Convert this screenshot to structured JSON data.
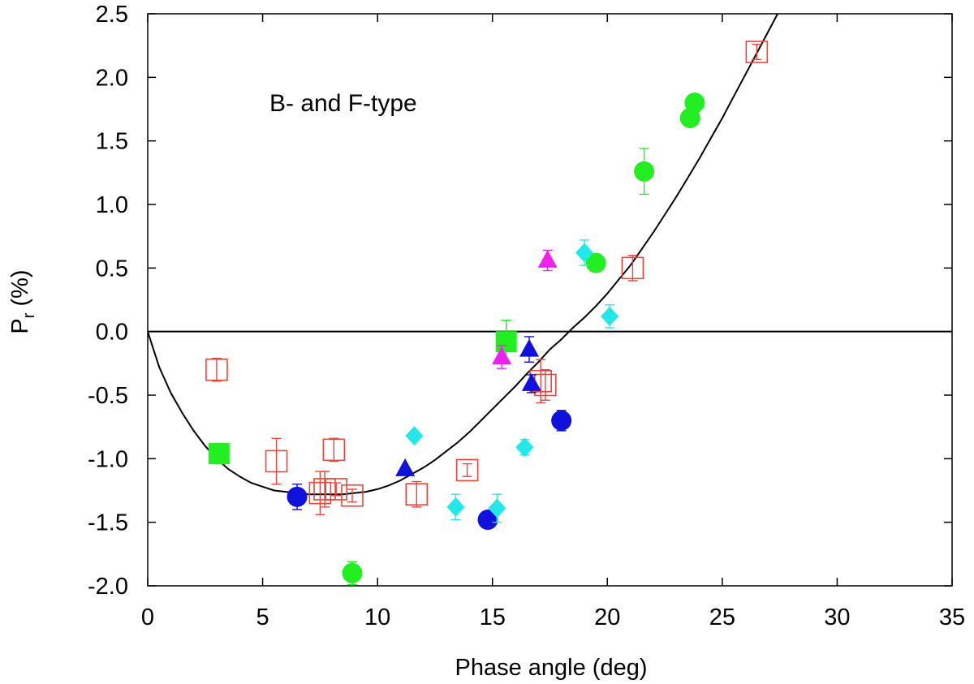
{
  "chart_data": {
    "type": "scatter",
    "title": "",
    "annotation": "B- and F-type",
    "xlabel": "Phase angle (deg)",
    "ylabel_main": "P",
    "ylabel_sub": "r",
    "ylabel_unit": " (%)",
    "xlim": [
      0,
      35
    ],
    "ylim": [
      -2.0,
      2.5
    ],
    "xticks": [
      0,
      5,
      10,
      15,
      20,
      25,
      30,
      35
    ],
    "yticks": [
      -2.0,
      -1.5,
      -1.0,
      -0.5,
      0.0,
      0.5,
      1.0,
      1.5,
      2.0,
      2.5
    ],
    "xtick_labels": [
      "0",
      "5",
      "10",
      "15",
      "20",
      "25",
      "30",
      "35"
    ],
    "ytick_labels": [
      "-2.0",
      "-1.5",
      "-1.0",
      "-0.5",
      "0.0",
      "0.5",
      "1.0",
      "1.5",
      "2.0",
      "2.5"
    ],
    "grid": false,
    "colors": {
      "red": "#e8463a",
      "green": "#22ee22",
      "blue": "#1111dd",
      "cyan": "#22e8e8",
      "magenta": "#ee22ee"
    },
    "series": [
      {
        "marker": "open-square",
        "color": "#e8463a",
        "points": [
          {
            "x": 3.0,
            "y": -0.3,
            "err": 0.09
          },
          {
            "x": 5.6,
            "y": -1.02,
            "err": 0.18
          },
          {
            "x": 7.5,
            "y": -1.27,
            "err": 0.17
          },
          {
            "x": 7.7,
            "y": -1.24,
            "err": 0.14
          },
          {
            "x": 8.1,
            "y": -0.93,
            "err": 0.09
          },
          {
            "x": 8.2,
            "y": -1.24,
            "err": 0.05
          },
          {
            "x": 8.9,
            "y": -1.29,
            "err": 0.05
          },
          {
            "x": 11.7,
            "y": -1.28,
            "err": 0.1
          },
          {
            "x": 13.9,
            "y": -1.09,
            "err": 0.05
          },
          {
            "x": 17.1,
            "y": -0.39,
            "err": 0.17
          },
          {
            "x": 17.3,
            "y": -0.42,
            "err": 0.12
          },
          {
            "x": 21.1,
            "y": 0.5,
            "err": 0.1
          },
          {
            "x": 26.5,
            "y": 2.2,
            "err": 0.06
          }
        ]
      },
      {
        "marker": "filled-square",
        "color": "#22ee22",
        "points": [
          {
            "x": 3.1,
            "y": -0.96,
            "err": 0.08
          },
          {
            "x": 15.6,
            "y": -0.08,
            "err": 0.17
          }
        ]
      },
      {
        "marker": "filled-circle",
        "color": "#22ee22",
        "points": [
          {
            "x": 8.9,
            "y": -1.9,
            "err": 0.09
          },
          {
            "x": 19.5,
            "y": 0.54,
            "err": 0.0
          },
          {
            "x": 21.6,
            "y": 1.26,
            "err": 0.18
          },
          {
            "x": 23.6,
            "y": 1.68,
            "err": 0.0
          },
          {
            "x": 23.8,
            "y": 1.8,
            "err": 0.0
          }
        ]
      },
      {
        "marker": "filled-circle",
        "color": "#1111dd",
        "points": [
          {
            "x": 6.5,
            "y": -1.3,
            "err": 0.1
          },
          {
            "x": 14.8,
            "y": -1.48,
            "err": 0.0
          },
          {
            "x": 18.0,
            "y": -0.7,
            "err": 0.08
          }
        ]
      },
      {
        "marker": "filled-triangle",
        "color": "#1111dd",
        "points": [
          {
            "x": 11.2,
            "y": -1.08,
            "err": 0.0
          },
          {
            "x": 16.6,
            "y": -0.14,
            "err": 0.1
          },
          {
            "x": 16.7,
            "y": -0.41,
            "err": 0.07
          }
        ]
      },
      {
        "marker": "filled-triangle",
        "color": "#ee22ee",
        "points": [
          {
            "x": 15.4,
            "y": -0.2,
            "err": 0.09
          },
          {
            "x": 17.4,
            "y": 0.56,
            "err": 0.08
          }
        ]
      },
      {
        "marker": "filled-diamond",
        "color": "#22e8e8",
        "points": [
          {
            "x": 11.6,
            "y": -0.82,
            "err": 0.0
          },
          {
            "x": 13.4,
            "y": -1.38,
            "err": 0.1
          },
          {
            "x": 15.2,
            "y": -1.39,
            "err": 0.11
          },
          {
            "x": 16.4,
            "y": -0.91,
            "err": 0.06
          },
          {
            "x": 19.0,
            "y": 0.62,
            "err": 0.1
          },
          {
            "x": 20.1,
            "y": 0.12,
            "err": 0.09
          }
        ]
      }
    ],
    "fit_curve": {
      "color": "#000000",
      "points": [
        [
          0.0,
          0.0
        ],
        [
          0.5,
          -0.28
        ],
        [
          1,
          -0.48
        ],
        [
          1.5,
          -0.64
        ],
        [
          2,
          -0.78
        ],
        [
          2.5,
          -0.9
        ],
        [
          3,
          -1.0
        ],
        [
          3.5,
          -1.08
        ],
        [
          4,
          -1.14
        ],
        [
          4.5,
          -1.19
        ],
        [
          5,
          -1.22
        ],
        [
          5.5,
          -1.25
        ],
        [
          6,
          -1.26
        ],
        [
          6.5,
          -1.27
        ],
        [
          7,
          -1.28
        ],
        [
          7.5,
          -1.28
        ],
        [
          8,
          -1.28
        ],
        [
          8.5,
          -1.28
        ],
        [
          9,
          -1.27
        ],
        [
          9.5,
          -1.26
        ],
        [
          10,
          -1.24
        ],
        [
          10.5,
          -1.21
        ],
        [
          11,
          -1.17
        ],
        [
          11.5,
          -1.12
        ],
        [
          12,
          -1.07
        ],
        [
          12.5,
          -1.01
        ],
        [
          13,
          -0.94
        ],
        [
          13.5,
          -0.87
        ],
        [
          14,
          -0.79
        ],
        [
          14.5,
          -0.7
        ],
        [
          15,
          -0.61
        ],
        [
          15.5,
          -0.52
        ],
        [
          16,
          -0.43
        ],
        [
          16.5,
          -0.33
        ],
        [
          17,
          -0.24
        ],
        [
          17.5,
          -0.14
        ],
        [
          18,
          -0.06
        ],
        [
          18.5,
          0.03
        ],
        [
          19,
          0.11
        ],
        [
          19.5,
          0.2
        ],
        [
          20,
          0.3
        ],
        [
          20.5,
          0.41
        ],
        [
          21,
          0.52
        ],
        [
          21.5,
          0.65
        ],
        [
          22,
          0.78
        ],
        [
          22.5,
          0.92
        ],
        [
          23,
          1.06
        ],
        [
          23.5,
          1.21
        ],
        [
          24,
          1.36
        ],
        [
          24.5,
          1.52
        ],
        [
          25,
          1.68
        ],
        [
          25.5,
          1.85
        ],
        [
          26,
          2.02
        ],
        [
          26.5,
          2.19
        ],
        [
          27,
          2.36
        ],
        [
          27.5,
          2.53
        ],
        [
          28,
          2.62
        ]
      ]
    },
    "zero_line": {
      "y": 0.0,
      "color": "#000000"
    }
  }
}
